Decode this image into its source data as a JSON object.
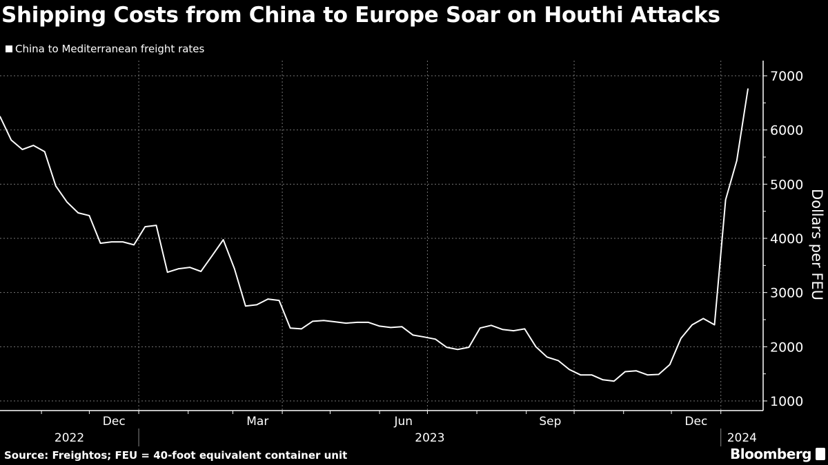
{
  "chart_data": {
    "type": "line",
    "title": "Shipping Costs from China to Europe Soar on Houthi Attacks",
    "source": "Source: Freightos; FEU = 40-foot equivalent container unit",
    "brand": "Bloomberg",
    "ylabel": "Dollars per FEU",
    "ylim": [
      900,
      7300
    ],
    "yticks": [
      1000,
      2000,
      3000,
      4000,
      5000,
      6000,
      7000
    ],
    "y_axis_side": "right",
    "grid": true,
    "legend_position": "top-left",
    "month_labels": [
      {
        "label": "Dec",
        "month": "2022-12"
      },
      {
        "label": "Mar",
        "month": "2023-03"
      },
      {
        "label": "Jun",
        "month": "2023-06"
      },
      {
        "label": "Sep",
        "month": "2023-09"
      },
      {
        "label": "Dec",
        "month": "2023-12"
      }
    ],
    "year_labels": [
      {
        "label": "2022",
        "year": 2022
      },
      {
        "label": "2023",
        "year": 2023
      },
      {
        "label": "2024",
        "year": 2024
      }
    ],
    "line_color": "#ffffff",
    "background": "#000000",
    "series": [
      {
        "name": "China to Mediterranean freight rates",
        "x": [
          "2022-10-06",
          "2022-10-13",
          "2022-10-20",
          "2022-10-27",
          "2022-11-03",
          "2022-11-10",
          "2022-11-17",
          "2022-11-24",
          "2022-12-01",
          "2022-12-08",
          "2022-12-15",
          "2022-12-22",
          "2022-12-29",
          "2023-01-05",
          "2023-01-12",
          "2023-01-19",
          "2023-01-26",
          "2023-02-02",
          "2023-02-09",
          "2023-02-16",
          "2023-02-23",
          "2023-03-02",
          "2023-03-09",
          "2023-03-16",
          "2023-03-23",
          "2023-03-30",
          "2023-04-06",
          "2023-04-13",
          "2023-04-20",
          "2023-04-27",
          "2023-05-04",
          "2023-05-11",
          "2023-05-18",
          "2023-05-25",
          "2023-06-01",
          "2023-06-08",
          "2023-06-15",
          "2023-06-22",
          "2023-06-29",
          "2023-07-06",
          "2023-07-13",
          "2023-07-20",
          "2023-07-27",
          "2023-08-03",
          "2023-08-10",
          "2023-08-17",
          "2023-08-24",
          "2023-08-31",
          "2023-09-07",
          "2023-09-14",
          "2023-09-21",
          "2023-09-28",
          "2023-10-05",
          "2023-10-12",
          "2023-10-19",
          "2023-10-26",
          "2023-11-02",
          "2023-11-09",
          "2023-11-16",
          "2023-11-23",
          "2023-11-30",
          "2023-12-07",
          "2023-12-14",
          "2023-12-21",
          "2023-12-28",
          "2024-01-04",
          "2024-01-11",
          "2024-01-18"
        ],
        "values": [
          6250,
          5815,
          5640,
          5715,
          5600,
          4965,
          4670,
          4470,
          4420,
          3910,
          3935,
          3935,
          3880,
          4215,
          4240,
          3375,
          3440,
          3465,
          3390,
          3680,
          3975,
          3440,
          2750,
          2775,
          2880,
          2855,
          2345,
          2330,
          2470,
          2485,
          2460,
          2435,
          2450,
          2450,
          2380,
          2355,
          2370,
          2215,
          2180,
          2140,
          1990,
          1950,
          1990,
          2345,
          2395,
          2320,
          2295,
          2330,
          2000,
          1810,
          1745,
          1580,
          1480,
          1480,
          1390,
          1365,
          1540,
          1555,
          1480,
          1490,
          1670,
          2155,
          2405,
          2520,
          2405,
          4710,
          5435,
          6760
        ]
      }
    ]
  }
}
